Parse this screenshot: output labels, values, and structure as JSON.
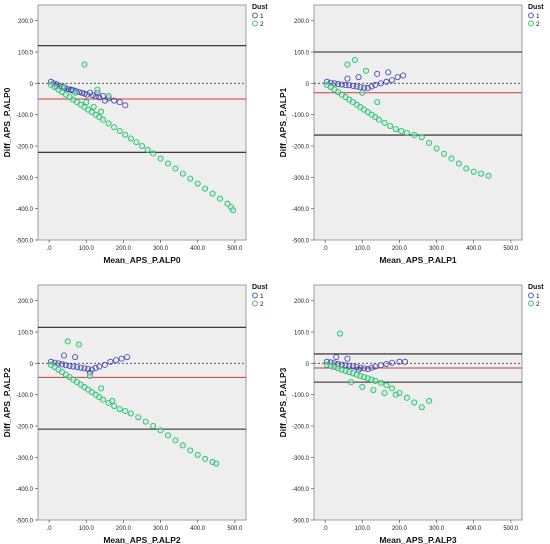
{
  "colors": {
    "plot_bg": "#eeeeee",
    "series1": "#3a3fb0",
    "series2": "#1db85a",
    "series2_fill": "#a8f0d8",
    "mean_line": "#d43a3a",
    "limit_line": "#222222",
    "zero_line": "#444444"
  },
  "legend": {
    "title": "Dust",
    "labels": [
      "1",
      "2"
    ]
  },
  "chart_data": [
    {
      "type": "scatter",
      "xlabel": "Mean_APS_P.ALP0",
      "ylabel": "Diff_APS_P.ALP0",
      "xlim": [
        -30,
        530
      ],
      "ylim": [
        -500,
        250
      ],
      "xticks": [
        0,
        100,
        200,
        300,
        400,
        500
      ],
      "xtick_labels": [
        ".0",
        "100.0",
        "200.0",
        "300.0",
        "400.0",
        "500.0"
      ],
      "yticks": [
        200,
        100,
        0,
        -100,
        -200,
        -300,
        -400,
        -500
      ],
      "ytick_labels": [
        "200.0",
        "100.0",
        "0",
        "-100.0",
        "-200.0",
        "-300.0",
        "-400.0",
        "-500.0"
      ],
      "legend_position": "top-right",
      "grid": false,
      "reference_lines": {
        "upper_limit": 120,
        "mean": -50,
        "lower_limit": -220,
        "zero": 0
      },
      "series": [
        {
          "name": "1",
          "x": [
            5,
            12,
            20,
            28,
            35,
            42,
            50,
            58,
            65,
            72,
            80,
            88,
            95,
            102,
            110,
            118,
            126,
            135,
            145,
            160,
            175,
            190,
            205,
            20,
            40,
            60,
            130,
            150
          ],
          "y": [
            5,
            0,
            -3,
            -8,
            -12,
            -15,
            -18,
            -20,
            -22,
            -25,
            -28,
            -30,
            -33,
            -36,
            -30,
            -38,
            -42,
            -45,
            -40,
            -48,
            -55,
            -60,
            -70,
            -10,
            -15,
            -22,
            -30,
            -55
          ]
        },
        {
          "name": "2",
          "x": [
            5,
            15,
            25,
            35,
            45,
            55,
            65,
            75,
            85,
            95,
            105,
            115,
            125,
            135,
            145,
            160,
            175,
            190,
            205,
            220,
            235,
            250,
            265,
            280,
            300,
            320,
            340,
            360,
            380,
            400,
            420,
            440,
            460,
            480,
            490,
            495,
            100,
            120,
            140,
            95,
            130,
            160,
            40,
            70
          ],
          "y": [
            -5,
            -12,
            -20,
            -28,
            -36,
            -44,
            -52,
            -60,
            -68,
            -76,
            -84,
            -92,
            -100,
            -108,
            -116,
            -128,
            -140,
            -152,
            -164,
            -176,
            -188,
            -200,
            -212,
            -224,
            -240,
            -256,
            -272,
            -288,
            -304,
            -320,
            -336,
            -352,
            -368,
            -384,
            -395,
            -405,
            -60,
            -75,
            -90,
            60,
            -20,
            -40,
            -10,
            -30
          ]
        }
      ]
    },
    {
      "type": "scatter",
      "xlabel": "Mean_APS_P.ALP1",
      "ylabel": "Diff_APS_P.ALP1",
      "xlim": [
        -30,
        530
      ],
      "ylim": [
        -500,
        250
      ],
      "xticks": [
        0,
        100,
        200,
        300,
        400,
        500
      ],
      "xtick_labels": [
        ".0",
        "100.0",
        "200.0",
        "300.0",
        "400.0",
        "500.0"
      ],
      "yticks": [
        200,
        100,
        0,
        -100,
        -200,
        -300,
        -400,
        -500
      ],
      "ytick_labels": [
        "200.0",
        "100.0",
        "0",
        "-100.0",
        "-200.0",
        "-300.0",
        "-400.0",
        "-500.0"
      ],
      "legend_position": "top-right",
      "grid": false,
      "reference_lines": {
        "upper_limit": 100,
        "mean": -30,
        "lower_limit": -165,
        "zero": 0
      },
      "series": [
        {
          "name": "1",
          "x": [
            5,
            15,
            25,
            35,
            45,
            55,
            65,
            75,
            85,
            95,
            105,
            115,
            125,
            135,
            150,
            165,
            180,
            195,
            210,
            60,
            90,
            140,
            170
          ],
          "y": [
            5,
            2,
            0,
            -2,
            -4,
            -5,
            -6,
            -8,
            -10,
            -12,
            -14,
            -15,
            -10,
            -5,
            0,
            5,
            10,
            20,
            25,
            15,
            20,
            30,
            35
          ]
        },
        {
          "name": "2",
          "x": [
            5,
            15,
            25,
            35,
            45,
            55,
            65,
            75,
            85,
            95,
            105,
            115,
            125,
            135,
            145,
            160,
            175,
            190,
            205,
            220,
            240,
            260,
            280,
            300,
            320,
            340,
            360,
            380,
            400,
            420,
            440,
            80,
            110,
            140,
            60,
            100
          ],
          "y": [
            -5,
            -12,
            -20,
            -28,
            -36,
            -44,
            -52,
            -60,
            -68,
            -76,
            -84,
            -92,
            -100,
            -108,
            -116,
            -126,
            -136,
            -146,
            -152,
            -158,
            -165,
            -172,
            -190,
            -208,
            -225,
            -240,
            -256,
            -272,
            -282,
            -288,
            -295,
            75,
            40,
            -60,
            60,
            -30
          ]
        }
      ]
    },
    {
      "type": "scatter",
      "xlabel": "Mean_APS_P.ALP2",
      "ylabel": "Diff_APS_P.ALP2",
      "xlim": [
        -30,
        530
      ],
      "ylim": [
        -500,
        250
      ],
      "xticks": [
        0,
        100,
        200,
        300,
        400,
        500
      ],
      "xtick_labels": [
        ".0",
        "100.0",
        "200.0",
        "300.0",
        "400.0",
        "500.0"
      ],
      "yticks": [
        200,
        100,
        0,
        -100,
        -200,
        -300,
        -400,
        -500
      ],
      "ytick_labels": [
        "200.0",
        "100.0",
        "0",
        "-100.0",
        "-200.0",
        "-300.0",
        "-400.0",
        "-500.0"
      ],
      "legend_position": "top-right",
      "grid": false,
      "reference_lines": {
        "upper_limit": 115,
        "mean": -45,
        "lower_limit": -210,
        "zero": 0
      },
      "series": [
        {
          "name": "1",
          "x": [
            5,
            15,
            25,
            35,
            45,
            55,
            65,
            75,
            85,
            95,
            105,
            115,
            125,
            135,
            150,
            165,
            180,
            195,
            210,
            40,
            70,
            110
          ],
          "y": [
            5,
            2,
            0,
            -3,
            -6,
            -8,
            -10,
            -12,
            -14,
            -16,
            -18,
            -20,
            -15,
            -10,
            -5,
            5,
            10,
            15,
            20,
            25,
            20,
            -30
          ]
        },
        {
          "name": "2",
          "x": [
            5,
            15,
            25,
            35,
            45,
            55,
            65,
            75,
            85,
            95,
            105,
            115,
            125,
            135,
            145,
            160,
            175,
            190,
            205,
            220,
            240,
            260,
            280,
            300,
            320,
            340,
            360,
            380,
            400,
            420,
            440,
            450,
            50,
            80,
            110,
            140,
            170
          ],
          "y": [
            -5,
            -12,
            -20,
            -28,
            -36,
            -44,
            -52,
            -60,
            -68,
            -76,
            -84,
            -92,
            -100,
            -108,
            -116,
            -126,
            -136,
            -146,
            -152,
            -160,
            -172,
            -186,
            -200,
            -214,
            -230,
            -246,
            -262,
            -278,
            -292,
            -305,
            -315,
            -320,
            70,
            60,
            -40,
            -80,
            -120
          ]
        }
      ]
    },
    {
      "type": "scatter",
      "xlabel": "Mean_APS_P.ALP3",
      "ylabel": "Diff_APS_P.ALP3",
      "xlim": [
        -30,
        530
      ],
      "ylim": [
        -500,
        250
      ],
      "xticks": [
        0,
        100,
        200,
        300,
        400,
        500
      ],
      "xtick_labels": [
        ".0",
        "100.0",
        "200.0",
        "300.0",
        "400.0",
        "500.0"
      ],
      "yticks": [
        200,
        100,
        0,
        -100,
        -200,
        -300,
        -400,
        -500
      ],
      "ytick_labels": [
        "200.0",
        "100.0",
        "0",
        "-100.0",
        "-200.0",
        "-300.0",
        "-400.0",
        "-500.0"
      ],
      "legend_position": "top-right",
      "grid": false,
      "reference_lines": {
        "upper_limit": 30,
        "mean": -15,
        "lower_limit": -60,
        "zero": 0
      },
      "series": [
        {
          "name": "1",
          "x": [
            5,
            15,
            25,
            35,
            45,
            55,
            65,
            75,
            85,
            95,
            105,
            115,
            125,
            135,
            150,
            165,
            180,
            200,
            215,
            30,
            60,
            90
          ],
          "y": [
            5,
            3,
            0,
            -2,
            -4,
            -6,
            -8,
            -10,
            -12,
            -14,
            -16,
            -18,
            -14,
            -10,
            -6,
            -2,
            2,
            5,
            5,
            20,
            15,
            -20
          ]
        },
        {
          "name": "2",
          "x": [
            5,
            15,
            25,
            35,
            45,
            55,
            65,
            75,
            85,
            95,
            105,
            115,
            125,
            135,
            150,
            165,
            180,
            200,
            220,
            240,
            260,
            280,
            40,
            70,
            100,
            130,
            160,
            190
          ],
          "y": [
            -5,
            -8,
            -12,
            -16,
            -20,
            -24,
            -28,
            -32,
            -36,
            -40,
            -44,
            -48,
            -52,
            -56,
            -62,
            -70,
            -80,
            -95,
            -110,
            -125,
            -140,
            -120,
            95,
            -60,
            -75,
            -85,
            -95,
            -100
          ]
        }
      ]
    }
  ]
}
